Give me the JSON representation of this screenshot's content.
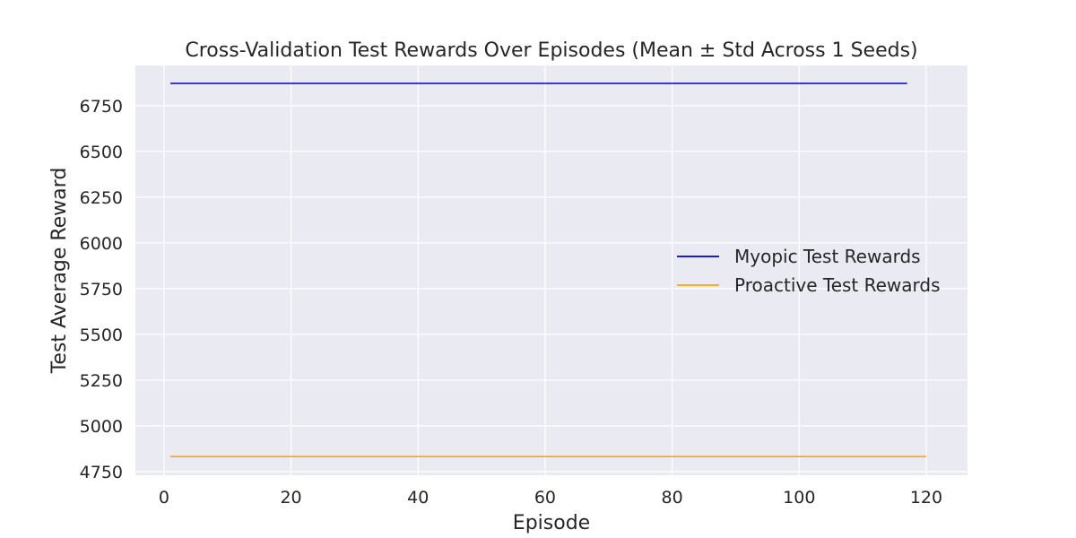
{
  "chart_data": {
    "type": "line",
    "title": "Cross-Validation Test Rewards Over Episodes (Mean ± Std Across 1 Seeds)",
    "xlabel": "Episode",
    "ylabel": "Test Average Reward",
    "xlim": [
      -4.5,
      126.5
    ],
    "ylim": [
      4730,
      6970
    ],
    "xticks": [
      0,
      20,
      40,
      60,
      80,
      100,
      120
    ],
    "yticks": [
      4750,
      5000,
      5250,
      5500,
      5750,
      6000,
      6250,
      6500,
      6750
    ],
    "grid": true,
    "background": "#eaeaf2",
    "legend_position": "center-right",
    "series": [
      {
        "name": "Myopic Test Rewards",
        "color": "#0000cc",
        "x": [
          1,
          117
        ],
        "y": [
          6872,
          6872
        ]
      },
      {
        "name": "Proactive Test Rewards",
        "color": "#ffa500",
        "x": [
          1,
          120
        ],
        "y": [
          4832,
          4832
        ]
      }
    ]
  }
}
